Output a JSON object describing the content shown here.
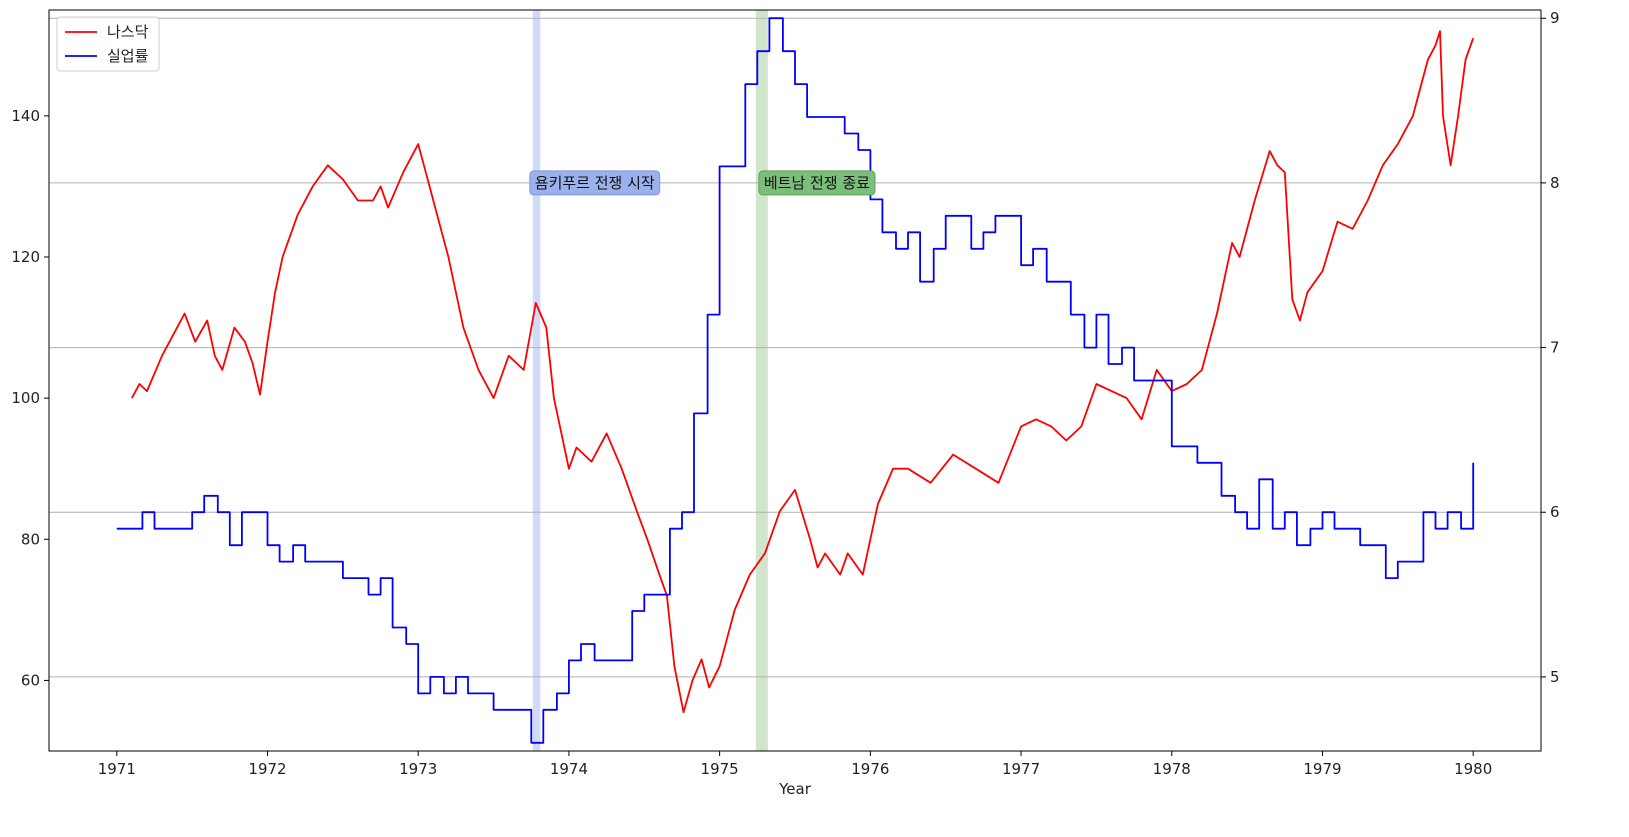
{
  "chart_data": {
    "type": "line",
    "xlabel": "Year",
    "ylabel": "",
    "y2label": "",
    "xlim": [
      1970.55,
      1980.45
    ],
    "ylim": [
      50,
      155
    ],
    "y2lim": [
      4.55,
      9.05
    ],
    "x_ticks": [
      1971,
      1972,
      1973,
      1974,
      1975,
      1976,
      1977,
      1978,
      1979,
      1980
    ],
    "y_ticks": [
      60,
      80,
      100,
      120,
      140
    ],
    "y2_ticks": [
      5,
      6,
      7,
      8,
      9
    ],
    "grid": "horizontal lines at right-axis ticks",
    "legend_position": "top-left",
    "series": [
      {
        "name": "나스닥",
        "axis": "left",
        "color": "#ff0000",
        "drawstyle": "line",
        "points": [
          [
            1971.1,
            100.0
          ],
          [
            1971.15,
            102.0
          ],
          [
            1971.2,
            101.0
          ],
          [
            1971.3,
            106.0
          ],
          [
            1971.4,
            110.0
          ],
          [
            1971.45,
            112.0
          ],
          [
            1971.52,
            108.0
          ],
          [
            1971.6,
            111.0
          ],
          [
            1971.65,
            106.0
          ],
          [
            1971.7,
            104.0
          ],
          [
            1971.78,
            110.0
          ],
          [
            1971.85,
            108.0
          ],
          [
            1971.9,
            105.0
          ],
          [
            1971.95,
            100.5
          ],
          [
            1972.0,
            108.0
          ],
          [
            1972.05,
            115.0
          ],
          [
            1972.1,
            120.0
          ],
          [
            1972.2,
            126.0
          ],
          [
            1972.3,
            130.0
          ],
          [
            1972.4,
            133.0
          ],
          [
            1972.5,
            131.0
          ],
          [
            1972.6,
            128.0
          ],
          [
            1972.7,
            128.0
          ],
          [
            1972.75,
            130.0
          ],
          [
            1972.8,
            127.0
          ],
          [
            1972.9,
            132.0
          ],
          [
            1973.0,
            136.0
          ],
          [
            1973.05,
            132.0
          ],
          [
            1973.1,
            128.0
          ],
          [
            1973.2,
            120.0
          ],
          [
            1973.3,
            110.0
          ],
          [
            1973.4,
            104.0
          ],
          [
            1973.5,
            100.0
          ],
          [
            1973.6,
            106.0
          ],
          [
            1973.7,
            104.0
          ],
          [
            1973.78,
            113.5
          ],
          [
            1973.85,
            110.0
          ],
          [
            1973.9,
            100.0
          ],
          [
            1973.95,
            95.0
          ],
          [
            1974.0,
            90.0
          ],
          [
            1974.05,
            93.0
          ],
          [
            1974.15,
            91.0
          ],
          [
            1974.25,
            95.0
          ],
          [
            1974.35,
            90.0
          ],
          [
            1974.45,
            84.0
          ],
          [
            1974.52,
            80.0
          ],
          [
            1974.6,
            75.0
          ],
          [
            1974.65,
            72.0
          ],
          [
            1974.7,
            62.0
          ],
          [
            1974.76,
            55.5
          ],
          [
            1974.82,
            60.0
          ],
          [
            1974.88,
            63.0
          ],
          [
            1974.93,
            59.0
          ],
          [
            1975.0,
            62.0
          ],
          [
            1975.1,
            70.0
          ],
          [
            1975.2,
            75.0
          ],
          [
            1975.3,
            78.0
          ],
          [
            1975.4,
            84.0
          ],
          [
            1975.5,
            87.0
          ],
          [
            1975.6,
            80.0
          ],
          [
            1975.65,
            76.0
          ],
          [
            1975.7,
            78.0
          ],
          [
            1975.8,
            75.0
          ],
          [
            1975.85,
            78.0
          ],
          [
            1975.95,
            75.0
          ],
          [
            1976.05,
            85.0
          ],
          [
            1976.15,
            90.0
          ],
          [
            1976.25,
            90.0
          ],
          [
            1976.4,
            88.0
          ],
          [
            1976.55,
            92.0
          ],
          [
            1976.7,
            90.0
          ],
          [
            1976.85,
            88.0
          ],
          [
            1977.0,
            96.0
          ],
          [
            1977.1,
            97.0
          ],
          [
            1977.2,
            96.0
          ],
          [
            1977.3,
            94.0
          ],
          [
            1977.4,
            96.0
          ],
          [
            1977.5,
            102.0
          ],
          [
            1977.6,
            101.0
          ],
          [
            1977.7,
            100.0
          ],
          [
            1977.8,
            97.0
          ],
          [
            1977.9,
            104.0
          ],
          [
            1978.0,
            101.0
          ],
          [
            1978.1,
            102.0
          ],
          [
            1978.2,
            104.0
          ],
          [
            1978.3,
            112.0
          ],
          [
            1978.4,
            122.0
          ],
          [
            1978.45,
            120.0
          ],
          [
            1978.55,
            128.0
          ],
          [
            1978.65,
            135.0
          ],
          [
            1978.7,
            133.0
          ],
          [
            1978.75,
            132.0
          ],
          [
            1978.8,
            114.0
          ],
          [
            1978.85,
            111.0
          ],
          [
            1978.9,
            115.0
          ],
          [
            1979.0,
            118.0
          ],
          [
            1979.1,
            125.0
          ],
          [
            1979.2,
            124.0
          ],
          [
            1979.3,
            128.0
          ],
          [
            1979.4,
            133.0
          ],
          [
            1979.5,
            136.0
          ],
          [
            1979.6,
            140.0
          ],
          [
            1979.65,
            144.0
          ],
          [
            1979.7,
            148.0
          ],
          [
            1979.75,
            150.0
          ],
          [
            1979.78,
            152.0
          ],
          [
            1979.8,
            140.0
          ],
          [
            1979.85,
            133.0
          ],
          [
            1979.9,
            140.0
          ],
          [
            1979.95,
            148.0
          ],
          [
            1980.0,
            151.0
          ]
        ]
      },
      {
        "name": "실업률",
        "axis": "right",
        "color": "#0000ff",
        "drawstyle": "steps-post",
        "points": [
          [
            1971.0,
            5.9
          ],
          [
            1971.17,
            6.0
          ],
          [
            1971.25,
            5.9
          ],
          [
            1971.5,
            6.0
          ],
          [
            1971.58,
            6.1
          ],
          [
            1971.67,
            6.0
          ],
          [
            1971.75,
            5.8
          ],
          [
            1971.83,
            6.0
          ],
          [
            1972.0,
            5.8
          ],
          [
            1972.08,
            5.7
          ],
          [
            1972.17,
            5.8
          ],
          [
            1972.25,
            5.7
          ],
          [
            1972.5,
            5.6
          ],
          [
            1972.67,
            5.5
          ],
          [
            1972.75,
            5.6
          ],
          [
            1972.83,
            5.3
          ],
          [
            1972.92,
            5.2
          ],
          [
            1973.0,
            4.9
          ],
          [
            1973.08,
            5.0
          ],
          [
            1973.17,
            4.9
          ],
          [
            1973.25,
            5.0
          ],
          [
            1973.33,
            4.9
          ],
          [
            1973.5,
            4.8
          ],
          [
            1973.75,
            4.6
          ],
          [
            1973.83,
            4.8
          ],
          [
            1973.92,
            4.9
          ],
          [
            1974.0,
            5.1
          ],
          [
            1974.08,
            5.2
          ],
          [
            1974.17,
            5.1
          ],
          [
            1974.42,
            5.4
          ],
          [
            1974.5,
            5.5
          ],
          [
            1974.67,
            5.9
          ],
          [
            1974.75,
            6.0
          ],
          [
            1974.83,
            6.6
          ],
          [
            1974.92,
            7.2
          ],
          [
            1975.0,
            8.1
          ],
          [
            1975.17,
            8.6
          ],
          [
            1975.25,
            8.8
          ],
          [
            1975.33,
            9.0
          ],
          [
            1975.42,
            8.8
          ],
          [
            1975.5,
            8.6
          ],
          [
            1975.58,
            8.4
          ],
          [
            1975.83,
            8.3
          ],
          [
            1975.92,
            8.2
          ],
          [
            1976.0,
            7.9
          ],
          [
            1976.08,
            7.7
          ],
          [
            1976.17,
            7.6
          ],
          [
            1976.25,
            7.7
          ],
          [
            1976.33,
            7.4
          ],
          [
            1976.42,
            7.6
          ],
          [
            1976.5,
            7.8
          ],
          [
            1976.67,
            7.6
          ],
          [
            1976.75,
            7.7
          ],
          [
            1976.83,
            7.8
          ],
          [
            1977.0,
            7.5
          ],
          [
            1977.08,
            7.6
          ],
          [
            1977.17,
            7.4
          ],
          [
            1977.33,
            7.2
          ],
          [
            1977.42,
            7.0
          ],
          [
            1977.5,
            7.2
          ],
          [
            1977.58,
            6.9
          ],
          [
            1977.67,
            7.0
          ],
          [
            1977.75,
            6.8
          ],
          [
            1977.92,
            6.8
          ],
          [
            1978.0,
            6.4
          ],
          [
            1978.17,
            6.3
          ],
          [
            1978.33,
            6.1
          ],
          [
            1978.42,
            6.0
          ],
          [
            1978.5,
            5.9
          ],
          [
            1978.58,
            6.2
          ],
          [
            1978.67,
            5.9
          ],
          [
            1978.75,
            6.0
          ],
          [
            1978.83,
            5.8
          ],
          [
            1978.92,
            5.9
          ],
          [
            1979.0,
            6.0
          ],
          [
            1979.08,
            5.9
          ],
          [
            1979.25,
            5.8
          ],
          [
            1979.42,
            5.6
          ],
          [
            1979.5,
            5.7
          ],
          [
            1979.67,
            6.0
          ],
          [
            1979.75,
            5.9
          ],
          [
            1979.83,
            6.0
          ],
          [
            1979.92,
            5.9
          ],
          [
            1980.0,
            6.0
          ],
          [
            1980.0,
            6.3
          ]
        ]
      }
    ],
    "spans": [
      {
        "x_start": 1973.76,
        "x_end": 1973.81,
        "color": "#aac0ee"
      },
      {
        "x_start": 1975.24,
        "x_end": 1975.32,
        "color": "#a9d0a0"
      }
    ],
    "annotations": [
      {
        "text": "욤키푸르 전쟁 시작",
        "x": 1973.78,
        "y": 130.5,
        "box_color": "#9bb1ec",
        "border_color": "#7e98e0"
      },
      {
        "text": "베트남 전쟁 종료",
        "x": 1975.3,
        "y": 130.5,
        "box_color": "#7bbd7a",
        "border_color": "#5aa55a"
      }
    ]
  }
}
